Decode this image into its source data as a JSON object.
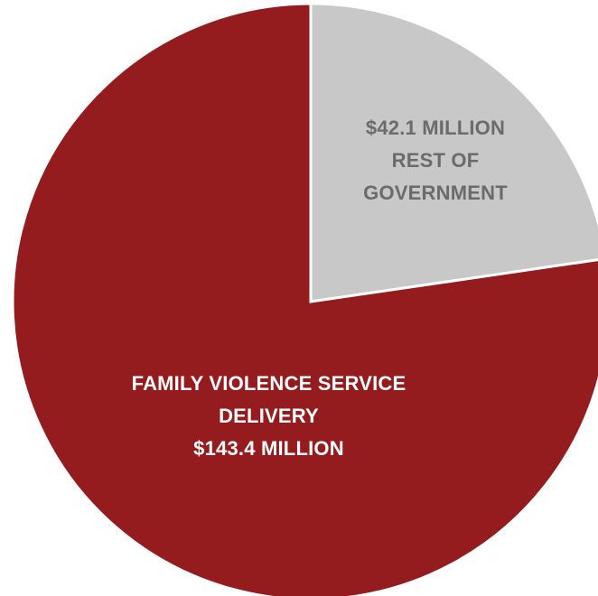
{
  "chart_data": {
    "type": "pie",
    "title": "",
    "legend": "none",
    "slices": [
      {
        "name": "REST OF GOVERNMENT",
        "value": 42.1,
        "unit": "$ million",
        "color": "#c8c8c8",
        "label_lines": [
          "$42.1 MILLION",
          "REST OF",
          "GOVERNMENT"
        ]
      },
      {
        "name": "FAMILY VIOLENCE SERVICE DELIVERY",
        "value": 143.4,
        "unit": "$ million",
        "color": "#941b1e",
        "label_lines": [
          "FAMILY VIOLENCE SERVICE",
          "DELIVERY",
          "$143.4  MILLION"
        ]
      }
    ]
  }
}
